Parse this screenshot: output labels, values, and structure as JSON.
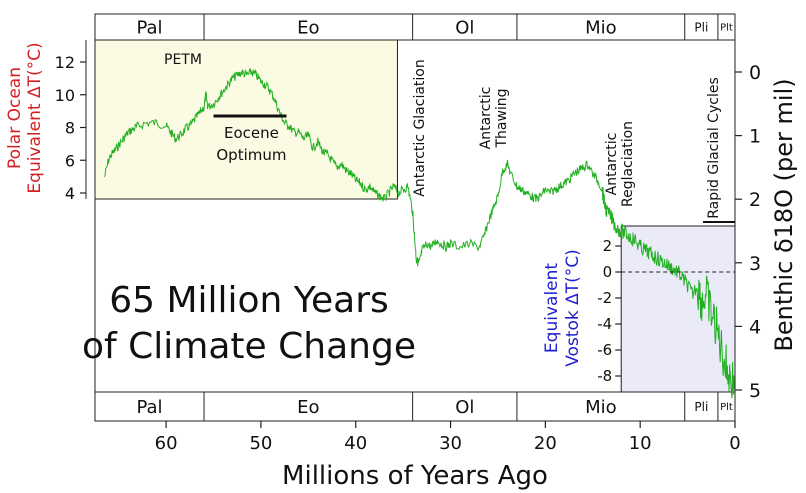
{
  "chart_data": {
    "type": "line",
    "title": "65 Million Years of Climate Change",
    "xlabel": "Millions of Years Ago",
    "xlim": [
      67.5,
      0
    ],
    "x_ticks": [
      "60",
      "50",
      "40",
      "30",
      "20",
      "10",
      "0"
    ],
    "ylabel_right": "Benthic δ18O (per mil)",
    "ylim_right": [
      -0.2,
      5
    ],
    "y_ticks_right": [
      "0",
      "1",
      "2",
      "3",
      "4",
      "5"
    ],
    "polar_panel": {
      "ylabel_line1": "Polar Ocean",
      "ylabel_line2": "Equivalent  ΔT(°C)",
      "ylim": [
        3.5,
        13
      ],
      "y_ticks": [
        "4",
        "6",
        "8",
        "10",
        "12"
      ],
      "x_range": [
        67.5,
        35.6
      ]
    },
    "vostok_panel": {
      "ylabel_line1": "Equivalent",
      "ylabel_line2": "Vostok  ΔT(°C)",
      "ylim": [
        -9,
        3
      ],
      "y_ticks": [
        "2",
        "0",
        "-2",
        "-4",
        "-6",
        "-8"
      ],
      "x_range": [
        12,
        0
      ]
    },
    "epochs": [
      {
        "label": "Pal",
        "start": 67.5,
        "end": 56
      },
      {
        "label": "Eo",
        "start": 56,
        "end": 34
      },
      {
        "label": "Ol",
        "start": 34,
        "end": 23
      },
      {
        "label": "Mio",
        "start": 23,
        "end": 5.3
      },
      {
        "label": "Pli",
        "start": 5.3,
        "end": 1.8
      },
      {
        "label": "Plt",
        "start": 1.8,
        "end": 0
      }
    ],
    "annotations": [
      {
        "text": "PETM",
        "x": 55.8
      },
      {
        "text": "Eocene",
        "x": 51
      },
      {
        "text": "Optimum",
        "x": 51
      },
      {
        "text": "Antarctic Glaciation",
        "x": 32.5
      },
      {
        "text": "Antarctic",
        "x": 24.5
      },
      {
        "text": "Thawing",
        "x": 24.5
      },
      {
        "text": "Antarctic",
        "x": 12
      },
      {
        "text": "Reglaciation",
        "x": 12
      },
      {
        "text": "Rapid Glacial Cycles",
        "x": 2.2
      }
    ],
    "series": [
      {
        "color": "#22b022",
        "x": [
          66.5,
          66,
          65.5,
          65,
          64.5,
          64,
          63.5,
          63,
          62,
          61,
          60,
          59.5,
          59,
          58.5,
          58,
          57.5,
          57,
          56.5,
          56,
          55.8,
          55.6,
          55,
          54.5,
          54,
          53.5,
          53,
          52.5,
          52,
          51.5,
          51,
          50.5,
          50,
          49.5,
          49,
          48.5,
          48,
          47.5,
          47,
          46.5,
          46,
          45.5,
          45,
          44.5,
          44,
          43.5,
          43,
          42.5,
          42,
          41.5,
          41,
          40.5,
          40,
          39.5,
          39,
          38.5,
          38,
          37.5,
          37,
          36.5,
          36,
          35.5,
          35,
          34.5,
          34,
          33.8,
          33.6,
          33.4,
          33.2,
          33,
          32.5,
          32,
          31.5,
          31,
          30.5,
          30,
          29,
          28,
          27,
          26.5,
          26,
          25.5,
          25,
          24.5,
          24,
          23.5,
          23,
          22.5,
          22,
          21.5,
          21,
          20.5,
          20,
          19.5,
          19,
          18.5,
          18,
          17.5,
          17,
          16.5,
          16,
          15.5,
          15,
          14.5,
          14,
          13.8,
          13.5,
          13,
          12.5,
          12,
          11.5,
          11,
          10.5,
          10,
          9.5,
          9,
          8.5,
          8,
          7.5,
          7,
          6.5,
          6,
          5.5,
          5,
          4.5,
          4,
          3.5,
          3,
          2.5,
          2,
          1.5,
          1,
          0.5,
          0
        ],
        "y": [
          1.65,
          1.35,
          1.25,
          1.15,
          1.05,
          0.95,
          0.9,
          0.85,
          0.8,
          0.8,
          0.85,
          0.95,
          1.05,
          1.0,
          0.9,
          0.85,
          0.75,
          0.65,
          0.55,
          0.35,
          0.55,
          0.5,
          0.4,
          0.3,
          0.2,
          0.1,
          0.05,
          0.0,
          0.05,
          0.0,
          0.05,
          0.15,
          0.2,
          0.3,
          0.45,
          0.65,
          0.8,
          0.85,
          0.95,
          0.95,
          1.05,
          1.0,
          1.2,
          1.1,
          1.25,
          1.3,
          1.4,
          1.5,
          1.45,
          1.55,
          1.6,
          1.7,
          1.75,
          1.85,
          1.8,
          1.9,
          1.95,
          2.0,
          1.9,
          1.8,
          1.9,
          1.85,
          1.8,
          2.2,
          2.6,
          2.95,
          3.0,
          2.95,
          2.8,
          2.7,
          2.75,
          2.65,
          2.7,
          2.75,
          2.7,
          2.75,
          2.7,
          2.75,
          2.6,
          2.35,
          2.15,
          1.95,
          1.55,
          1.45,
          1.65,
          1.8,
          1.85,
          1.9,
          1.95,
          2.0,
          1.95,
          1.85,
          1.9,
          1.85,
          1.8,
          1.75,
          1.7,
          1.6,
          1.55,
          1.5,
          1.45,
          1.6,
          1.7,
          1.85,
          2.05,
          2.2,
          2.3,
          2.45,
          2.5,
          2.55,
          2.6,
          2.65,
          2.75,
          2.8,
          2.85,
          2.9,
          2.95,
          3.0,
          3.05,
          3.1,
          3.15,
          3.25,
          3.35,
          3.5,
          3.35,
          3.6,
          3.5,
          3.8,
          4.0,
          4.3,
          4.6,
          4.8,
          4.9
        ]
      }
    ],
    "grid": false
  }
}
